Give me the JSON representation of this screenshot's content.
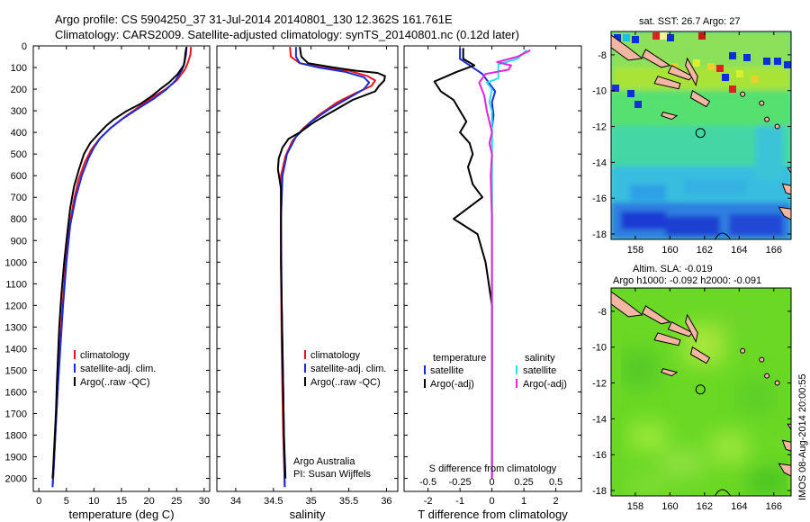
{
  "header": {
    "line1": "Argo profile: CS 5904250_37 31-Jul-2014 20140801_130 12.362S 161.761E",
    "line2": "Climatology: CARS2009. Satellite-adjusted climatology: synTS_20140801.nc (0.12d later)"
  },
  "side_stamp": "IMOS 08-Aug-2014 20:00:55",
  "colors": {
    "red": "#e8161b",
    "blue": "#1c2ad6",
    "black": "#000000",
    "cyan": "#27e0f0",
    "magenta": "#e625d8",
    "land": "#f2b6a2"
  },
  "depth_axis": {
    "ticks": [
      0,
      100,
      200,
      300,
      400,
      500,
      600,
      700,
      800,
      900,
      1000,
      1100,
      1200,
      1300,
      1400,
      1500,
      1600,
      1700,
      1800,
      1900,
      2000
    ],
    "min": 0,
    "max": 2060
  },
  "chart_data": [
    {
      "type": "line",
      "id": "temperature",
      "xlabel": "temperature (deg C)",
      "xlim": [
        -1,
        31
      ],
      "xticks": [
        0,
        5,
        10,
        15,
        20,
        25,
        30
      ],
      "legend": [
        "climatology",
        "satellite-adj. clim.",
        "Argo(..raw -QC)"
      ],
      "series": [
        {
          "name": "climatology",
          "color": "red",
          "points": [
            [
              27.6,
              5
            ],
            [
              27.5,
              40
            ],
            [
              27,
              80
            ],
            [
              26.5,
              110
            ],
            [
              25,
              160
            ],
            [
              23,
              200
            ],
            [
              20.5,
              240
            ],
            [
              18,
              285
            ],
            [
              15.5,
              330
            ],
            [
              13,
              380
            ],
            [
              11,
              430
            ],
            [
              9.5,
              480
            ],
            [
              8.3,
              540
            ],
            [
              7.2,
              620
            ],
            [
              6.3,
              720
            ],
            [
              5.5,
              850
            ],
            [
              4.9,
              1000
            ],
            [
              4.3,
              1200
            ],
            [
              3.8,
              1400
            ],
            [
              3.4,
              1600
            ],
            [
              3,
              1800
            ],
            [
              2.7,
              1950
            ],
            [
              2.5,
              2040
            ]
          ]
        },
        {
          "name": "satellite-adj. clim.",
          "color": "blue",
          "points": [
            [
              26.8,
              5
            ],
            [
              26.7,
              40
            ],
            [
              26.4,
              80
            ],
            [
              26,
              110
            ],
            [
              24.8,
              160
            ],
            [
              23.2,
              200
            ],
            [
              20.8,
              245
            ],
            [
              18,
              290
            ],
            [
              15.3,
              335
            ],
            [
              13,
              380
            ],
            [
              11.2,
              425
            ],
            [
              10,
              470
            ],
            [
              9,
              520
            ],
            [
              7.8,
              600
            ],
            [
              6.7,
              700
            ],
            [
              5.7,
              830
            ],
            [
              5,
              1000
            ],
            [
              4.4,
              1200
            ],
            [
              3.9,
              1400
            ],
            [
              3.4,
              1600
            ],
            [
              3,
              1800
            ],
            [
              2.7,
              1950
            ],
            [
              2.5,
              2040
            ]
          ]
        },
        {
          "name": "Argo(..raw -QC)",
          "color": "black",
          "points": [
            [
              26.8,
              5
            ],
            [
              26.6,
              30
            ],
            [
              26.5,
              60
            ],
            [
              26.3,
              90
            ],
            [
              25.2,
              130
            ],
            [
              23.6,
              170
            ],
            [
              22,
              200
            ],
            [
              20.6,
              230
            ],
            [
              18.3,
              270
            ],
            [
              16,
              300
            ],
            [
              13.6,
              340
            ],
            [
              12.2,
              370
            ],
            [
              10.7,
              410
            ],
            [
              9.3,
              450
            ],
            [
              8.2,
              500
            ],
            [
              7.3,
              570
            ],
            [
              6.4,
              650
            ],
            [
              5.7,
              750
            ],
            [
              5.1,
              880
            ],
            [
              4.6,
              1000
            ],
            [
              4.1,
              1150
            ],
            [
              3.7,
              1300
            ],
            [
              3.5,
              1420
            ],
            [
              3.3,
              1550
            ],
            [
              3.1,
              1700
            ],
            [
              2.9,
              1800
            ],
            [
              2.7,
              1900
            ],
            [
              2.6,
              1960
            ],
            [
              2.5,
              2000
            ]
          ]
        }
      ]
    },
    {
      "type": "line",
      "id": "salinity",
      "xlabel": "salinity",
      "xlim": [
        33.75,
        36.15
      ],
      "xticks": [
        34,
        34.5,
        35,
        35.5,
        36
      ],
      "legend": [
        "climatology",
        "satellite-adj. clim.",
        "Argo(..raw -QC)"
      ],
      "annotation": [
        "Argo Australia",
        "PI: Susan Wijffels"
      ],
      "series": [
        {
          "name": "climatology",
          "color": "red",
          "points": [
            [
              34.72,
              5
            ],
            [
              34.73,
              50
            ],
            [
              34.85,
              80
            ],
            [
              35.15,
              100
            ],
            [
              35.5,
              115
            ],
            [
              35.75,
              140
            ],
            [
              35.85,
              160
            ],
            [
              35.8,
              185
            ],
            [
              35.58,
              220
            ],
            [
              35.35,
              260
            ],
            [
              35.1,
              320
            ],
            [
              34.9,
              380
            ],
            [
              34.75,
              440
            ],
            [
              34.66,
              510
            ],
            [
              34.6,
              600
            ],
            [
              34.6,
              1000
            ],
            [
              34.61,
              1400
            ],
            [
              34.63,
              1800
            ],
            [
              34.65,
              2040
            ]
          ]
        },
        {
          "name": "satellite-adj. clim.",
          "color": "blue",
          "points": [
            [
              34.8,
              5
            ],
            [
              34.8,
              50
            ],
            [
              34.85,
              80
            ],
            [
              35.1,
              100
            ],
            [
              35.45,
              120
            ],
            [
              35.7,
              145
            ],
            [
              35.77,
              170
            ],
            [
              35.7,
              200
            ],
            [
              35.5,
              240
            ],
            [
              35.25,
              290
            ],
            [
              35,
              350
            ],
            [
              34.8,
              420
            ],
            [
              34.68,
              500
            ],
            [
              34.62,
              600
            ],
            [
              34.6,
              800
            ],
            [
              34.61,
              1200
            ],
            [
              34.63,
              1600
            ],
            [
              34.65,
              2040
            ]
          ]
        },
        {
          "name": "Argo(..raw -QC)",
          "color": "black",
          "points": [
            [
              34.85,
              5
            ],
            [
              34.87,
              50
            ],
            [
              34.96,
              80
            ],
            [
              35.3,
              100
            ],
            [
              35.6,
              115
            ],
            [
              35.88,
              125
            ],
            [
              35.98,
              140
            ],
            [
              35.97,
              160
            ],
            [
              35.9,
              185
            ],
            [
              35.85,
              210
            ],
            [
              35.55,
              250
            ],
            [
              35.3,
              300
            ],
            [
              35.05,
              350
            ],
            [
              34.85,
              400
            ],
            [
              34.7,
              430
            ],
            [
              34.62,
              470
            ],
            [
              34.57,
              520
            ],
            [
              34.56,
              570
            ],
            [
              34.6,
              660
            ],
            [
              34.6,
              1000
            ],
            [
              34.62,
              1400
            ],
            [
              34.64,
              1800
            ],
            [
              34.66,
              2000
            ]
          ]
        }
      ]
    },
    {
      "type": "line",
      "id": "differences",
      "xlabel": "T difference from climatology",
      "xlabel2": "S difference from climatology",
      "xlim": [
        -2.75,
        2.8
      ],
      "xticks": [
        -2,
        -1,
        0,
        1,
        2
      ],
      "xticks2": [
        -0.5,
        -0.25,
        0,
        0.25,
        0.5
      ],
      "xticks2_labels": [
        "-0.5",
        "-0.25",
        "0",
        "0.25",
        "0.5"
      ],
      "legend_left_title": "temperature",
      "legend_right_title": "salinity",
      "legend_left": [
        "satellite",
        "Argo(-adj)"
      ],
      "legend_right": [
        "satellite",
        "Argo(-adj)"
      ],
      "series": [
        {
          "name": "T satellite",
          "color": "blue",
          "points": [
            [
              -1,
              10
            ],
            [
              -1,
              60
            ],
            [
              -0.7,
              90
            ],
            [
              -0.3,
              130
            ],
            [
              -0.1,
              170
            ],
            [
              0.1,
              210
            ],
            [
              0,
              260
            ],
            [
              0.05,
              320
            ],
            [
              0,
              380
            ],
            [
              0,
              450
            ],
            [
              0,
              600
            ],
            [
              0,
              800
            ],
            [
              0,
              1200
            ],
            [
              0,
              1600
            ],
            [
              0,
              2000
            ]
          ]
        },
        {
          "name": "T Argo(-adj)",
          "color": "black",
          "points": [
            [
              -0.9,
              10
            ],
            [
              -0.9,
              60
            ],
            [
              -0.55,
              90
            ],
            [
              -1.1,
              120
            ],
            [
              -1.8,
              165
            ],
            [
              -1.6,
              210
            ],
            [
              -1.2,
              250
            ],
            [
              -1,
              300
            ],
            [
              -0.8,
              350
            ],
            [
              -1,
              400
            ],
            [
              -0.7,
              450
            ],
            [
              -0.6,
              500
            ],
            [
              -0.75,
              560
            ],
            [
              -0.6,
              640
            ],
            [
              -0.3,
              700
            ],
            [
              -1.2,
              800
            ],
            [
              -0.45,
              870
            ],
            [
              -0.2,
              1000
            ],
            [
              -0.1,
              1100
            ],
            [
              0,
              1200
            ],
            [
              0,
              2000
            ]
          ]
        },
        {
          "name": "S satellite",
          "color": "cyan",
          "points": [
            [
              0.27,
              20
            ],
            [
              0.2,
              60
            ],
            [
              0.05,
              85
            ],
            [
              0.05,
              150
            ],
            [
              -0.04,
              170
            ],
            [
              0,
              200
            ],
            [
              -0.02,
              260
            ],
            [
              0,
              300
            ],
            [
              0,
              400
            ],
            [
              0,
              600
            ],
            [
              0,
              1000
            ],
            [
              0,
              1500
            ],
            [
              0,
              2000
            ]
          ]
        },
        {
          "name": "S Argo(-adj)",
          "color": "magenta",
          "points": [
            [
              0.3,
              20
            ],
            [
              0.2,
              50
            ],
            [
              0.04,
              75
            ],
            [
              0.15,
              90
            ],
            [
              0.13,
              110
            ],
            [
              -0.05,
              130
            ],
            [
              -0.1,
              170
            ],
            [
              -0.06,
              230
            ],
            [
              -0.04,
              300
            ],
            [
              0,
              400
            ],
            [
              -0.02,
              450
            ],
            [
              0,
              500
            ],
            [
              -0.01,
              600
            ],
            [
              0,
              800
            ],
            [
              0,
              1000
            ],
            [
              0,
              1400
            ],
            [
              0,
              2000
            ]
          ]
        }
      ]
    },
    {
      "type": "heatmap",
      "id": "sst_map",
      "title": "sat. SST: 26.7 Argo: 27",
      "xticks": [
        158,
        160,
        162,
        164,
        166
      ],
      "yticks": [
        -8,
        -10,
        -12,
        -14,
        -16,
        -18
      ],
      "xlim": [
        156.6,
        167
      ],
      "ylim": [
        -18.3,
        -6.7
      ],
      "marker": {
        "lon": 161.761,
        "lat": -12.362
      }
    },
    {
      "type": "heatmap",
      "id": "sla_map",
      "title": "Altim. SLA: -0.019",
      "title2": "Argo h1000: -0.092 h2000: -0.091",
      "xticks": [
        158,
        160,
        162,
        164,
        166
      ],
      "yticks": [
        -8,
        -10,
        -12,
        -14,
        -16,
        -18
      ],
      "xlim": [
        156.6,
        167
      ],
      "ylim": [
        -18.3,
        -6.7
      ],
      "marker": {
        "lon": 161.761,
        "lat": -12.362
      }
    }
  ]
}
